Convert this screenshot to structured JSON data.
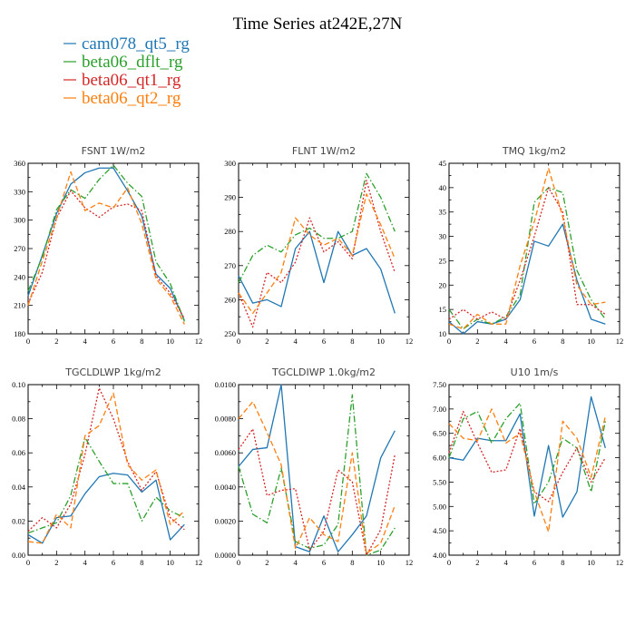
{
  "title": "Time Series at242E,27N",
  "legend": [
    {
      "name": "cam078_qt5_rg",
      "color": "#1f77b4"
    },
    {
      "name": "beta06_dflt_rg",
      "color": "#2ca02c"
    },
    {
      "name": "beta06_qt1_rg",
      "color": "#d62728"
    },
    {
      "name": "beta06_qt2_rg",
      "color": "#ff7f0e"
    }
  ],
  "chart_data": [
    {
      "type": "line",
      "title": "FSNT   1W/m2",
      "x": [
        0,
        1,
        2,
        3,
        4,
        5,
        6,
        7,
        8,
        9,
        10,
        11
      ],
      "xlim": [
        0,
        12
      ],
      "xticks": [
        "0",
        "2",
        "4",
        "6",
        "8",
        "10",
        "12"
      ],
      "ylim": [
        180,
        360
      ],
      "yticks": [
        "180",
        "210",
        "240",
        "270",
        "300",
        "330",
        "360"
      ],
      "series": [
        {
          "name": "cam078_qt5_rg",
          "color": "#1f77b4",
          "dash": "solid",
          "values": [
            220,
            263,
            307,
            338,
            350,
            355,
            355,
            331,
            304,
            243,
            228,
            194
          ]
        },
        {
          "name": "beta06_dflt_rg",
          "color": "#2ca02c",
          "dash": "dashdot",
          "values": [
            225,
            261,
            311,
            332,
            323,
            343,
            358,
            339,
            325,
            256,
            233,
            193
          ]
        },
        {
          "name": "beta06_qt1_rg",
          "color": "#d62728",
          "dash": "dot",
          "values": [
            212,
            245,
            302,
            331,
            313,
            303,
            314,
            317,
            310,
            241,
            223,
            196
          ]
        },
        {
          "name": "beta06_qt2_rg",
          "color": "#ff7f0e",
          "dash": "dash",
          "values": [
            210,
            257,
            302,
            351,
            310,
            318,
            313,
            334,
            296,
            238,
            220,
            190
          ]
        }
      ]
    },
    {
      "type": "line",
      "title": "FLNT   1W/m2",
      "x": [
        0,
        1,
        2,
        3,
        4,
        5,
        6,
        7,
        8,
        9,
        10,
        11
      ],
      "xlim": [
        0,
        12
      ],
      "xticks": [
        "0",
        "2",
        "4",
        "6",
        "8",
        "10",
        "12"
      ],
      "ylim": [
        250,
        300
      ],
      "yticks": [
        "250",
        "260",
        "270",
        "280",
        "290",
        "300"
      ],
      "series": [
        {
          "name": "cam078_qt5_rg",
          "color": "#1f77b4",
          "dash": "solid",
          "values": [
            267,
            259,
            260,
            258,
            275,
            280,
            265,
            280,
            273,
            275,
            269,
            256
          ]
        },
        {
          "name": "beta06_dflt_rg",
          "color": "#2ca02c",
          "dash": "dashdot",
          "values": [
            265,
            273,
            276,
            274,
            279,
            281,
            278,
            278,
            280,
            297,
            290,
            280
          ]
        },
        {
          "name": "beta06_qt1_rg",
          "color": "#d62728",
          "dash": "dot",
          "values": [
            262,
            252,
            268,
            265,
            271,
            284,
            274,
            277,
            272,
            295,
            280,
            268
          ]
        },
        {
          "name": "beta06_qt2_rg",
          "color": "#ff7f0e",
          "dash": "dash",
          "values": [
            262,
            256,
            262,
            268,
            284,
            279,
            276,
            278,
            273,
            291,
            282,
            272
          ]
        }
      ]
    },
    {
      "type": "line",
      "title": "TMQ   1kg/m2",
      "x": [
        0,
        1,
        2,
        3,
        4,
        5,
        6,
        7,
        8,
        9,
        10,
        11
      ],
      "xlim": [
        0,
        12
      ],
      "xticks": [
        "0",
        "2",
        "4",
        "6",
        "8",
        "10",
        "12"
      ],
      "ylim": [
        10,
        45
      ],
      "yticks": [
        "10",
        "15",
        "20",
        "25",
        "30",
        "35",
        "40",
        "45"
      ],
      "series": [
        {
          "name": "cam078_qt5_rg",
          "color": "#1f77b4",
          "dash": "solid",
          "values": [
            12.5,
            10,
            12.5,
            12,
            13,
            17,
            29,
            28,
            32.5,
            21,
            13,
            12
          ]
        },
        {
          "name": "beta06_dflt_rg",
          "color": "#2ca02c",
          "dash": "dashdot",
          "values": [
            15,
            11,
            13,
            12,
            13.5,
            18,
            37,
            40,
            39,
            23,
            17,
            13
          ]
        },
        {
          "name": "beta06_qt1_rg",
          "color": "#d62728",
          "dash": "dot",
          "values": [
            13,
            15,
            13,
            14.5,
            13,
            21,
            30,
            40,
            35,
            16,
            16,
            14
          ]
        },
        {
          "name": "beta06_qt2_rg",
          "color": "#ff7f0e",
          "dash": "dash",
          "values": [
            12,
            11,
            14,
            12,
            12,
            24,
            33,
            44,
            34,
            20,
            16,
            16.5
          ]
        }
      ]
    },
    {
      "type": "line",
      "title": "TGCLDLWP   1kg/m2",
      "x": [
        0,
        1,
        2,
        3,
        4,
        5,
        6,
        7,
        8,
        9,
        10,
        11
      ],
      "xlim": [
        0,
        12
      ],
      "xticks": [
        "0",
        "2",
        "4",
        "6",
        "8",
        "10",
        "12"
      ],
      "ylim": [
        0,
        0.1
      ],
      "yticks": [
        "0.00",
        "0.02",
        "0.04",
        "0.06",
        "0.08",
        "0.10"
      ],
      "series": [
        {
          "name": "cam078_qt5_rg",
          "color": "#1f77b4",
          "dash": "solid",
          "values": [
            0.012,
            0.007,
            0.022,
            0.023,
            0.036,
            0.046,
            0.048,
            0.047,
            0.037,
            0.044,
            0.009,
            0.018
          ]
        },
        {
          "name": "beta06_dflt_rg",
          "color": "#2ca02c",
          "dash": "dashdot",
          "values": [
            0.013,
            0.016,
            0.019,
            0.035,
            0.069,
            0.055,
            0.042,
            0.042,
            0.02,
            0.034,
            0.026,
            0.022
          ]
        },
        {
          "name": "beta06_qt1_rg",
          "color": "#d62728",
          "dash": "dot",
          "values": [
            0.014,
            0.022,
            0.016,
            0.03,
            0.059,
            0.098,
            0.08,
            0.055,
            0.038,
            0.049,
            0.022,
            0.015
          ]
        },
        {
          "name": "beta06_qt2_rg",
          "color": "#ff7f0e",
          "dash": "dash",
          "values": [
            0.008,
            0.007,
            0.024,
            0.016,
            0.07,
            0.076,
            0.095,
            0.053,
            0.044,
            0.05,
            0.018,
            0.026
          ]
        }
      ]
    },
    {
      "type": "line",
      "title": "TGCLDIWP   1.0kg/m2",
      "x": [
        0,
        1,
        2,
        3,
        4,
        5,
        6,
        7,
        8,
        9,
        10,
        11
      ],
      "xlim": [
        0,
        12
      ],
      "xticks": [
        "0",
        "2",
        "4",
        "6",
        "8",
        "10",
        "12"
      ],
      "ylim": [
        0,
        0.01
      ],
      "yticks": [
        "0.0000",
        "0.0020",
        "0.0040",
        "0.0060",
        "0.0080",
        "0.0100"
      ],
      "series": [
        {
          "name": "cam078_qt5_rg",
          "color": "#1f77b4",
          "dash": "solid",
          "values": [
            0.0052,
            0.0062,
            0.0063,
            0.01,
            0.0005,
            0.0002,
            0.0023,
            0.0002,
            0.0012,
            0.0023,
            0.0057,
            0.0073
          ]
        },
        {
          "name": "beta06_dflt_rg",
          "color": "#2ca02c",
          "dash": "dashdot",
          "values": [
            0.0052,
            0.0024,
            0.0019,
            0.0051,
            0.0008,
            0.0004,
            0.0006,
            0.0018,
            0.0094,
            0.0,
            0.0003,
            0.0016
          ]
        },
        {
          "name": "beta06_qt1_rg",
          "color": "#d62728",
          "dash": "dot",
          "values": [
            0.0062,
            0.0074,
            0.0035,
            0.0038,
            0.0039,
            0.0003,
            0.0014,
            0.005,
            0.0043,
            0.0,
            0.0015,
            0.0059
          ]
        },
        {
          "name": "beta06_qt2_rg",
          "color": "#ff7f0e",
          "dash": "dash",
          "values": [
            0.008,
            0.009,
            0.0072,
            0.0053,
            0.0004,
            0.0022,
            0.0012,
            0.0008,
            0.006,
            0.0001,
            0.0007,
            0.0029
          ]
        }
      ]
    },
    {
      "type": "line",
      "title": "U10   1m/s",
      "x": [
        0,
        1,
        2,
        3,
        4,
        5,
        6,
        7,
        8,
        9,
        10,
        11
      ],
      "xlim": [
        0,
        12
      ],
      "xticks": [
        "0",
        "2",
        "4",
        "6",
        "8",
        "10",
        "12"
      ],
      "ylim": [
        4.0,
        7.5
      ],
      "yticks": [
        "4.00",
        "4.50",
        "5.00",
        "5.50",
        "6.00",
        "6.50",
        "7.00",
        "7.50"
      ],
      "series": [
        {
          "name": "cam078_qt5_rg",
          "color": "#1f77b4",
          "dash": "solid",
          "values": [
            6.0,
            5.95,
            6.4,
            6.35,
            6.35,
            6.9,
            4.8,
            6.25,
            4.78,
            5.3,
            7.25,
            6.2
          ]
        },
        {
          "name": "beta06_dflt_rg",
          "color": "#2ca02c",
          "dash": "dashdot",
          "values": [
            6.0,
            6.8,
            6.95,
            6.3,
            6.8,
            7.12,
            5.05,
            5.5,
            6.4,
            6.2,
            5.3,
            6.75
          ]
        },
        {
          "name": "beta06_qt1_rg",
          "color": "#d62728",
          "dash": "dot",
          "values": [
            6.1,
            6.95,
            6.3,
            5.7,
            5.75,
            6.6,
            5.3,
            5.1,
            5.7,
            6.2,
            5.5,
            6.0
          ]
        },
        {
          "name": "beta06_qt2_rg",
          "color": "#ff7f0e",
          "dash": "dash",
          "values": [
            6.7,
            6.4,
            6.35,
            7.0,
            6.3,
            6.5,
            5.3,
            4.48,
            6.75,
            6.4,
            5.6,
            6.85
          ]
        }
      ]
    }
  ]
}
